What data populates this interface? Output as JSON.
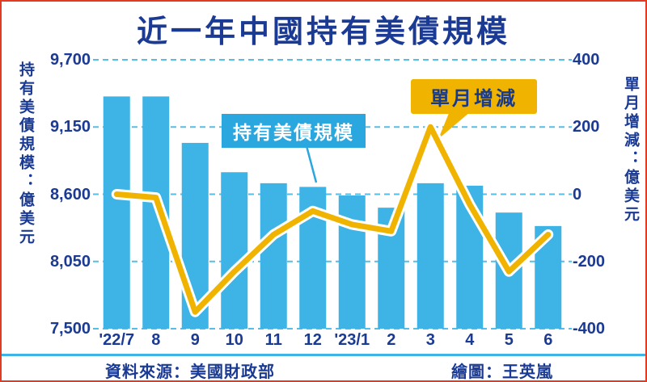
{
  "page": {
    "title": "近一年中國持有美債規模",
    "source": "資料來源：美國財政部",
    "credit": "繪圖：王英嵐"
  },
  "colors": {
    "title": "#1a3a94",
    "navy_text": "#1a3a94",
    "bar": "#3eb3e6",
    "line": "#f0b400",
    "line_casing": "#ffffff",
    "grid": "#4fc0ec",
    "frame_border": "#e23b22",
    "bar_callout_bg": "#29a7de",
    "bar_callout_text": "#ffffff",
    "line_callout_bg": "#f0b400",
    "line_callout_text": "#173a8c"
  },
  "chart_data": {
    "type": "bar",
    "subtype": "bar+line combo",
    "title": "近一年中國持有美債規模",
    "categories": [
      "'22/7",
      "8",
      "9",
      "10",
      "11",
      "12",
      "'23/1",
      "2",
      "3",
      "4",
      "5",
      "6"
    ],
    "series": [
      {
        "name": "持有美債規模",
        "type": "bar",
        "axis": "left",
        "unit": "億美元",
        "color": "#3eb3e6",
        "values": [
          9400,
          9400,
          9020,
          8780,
          8690,
          8660,
          8590,
          8490,
          8690,
          8670,
          8450,
          8340
        ]
      },
      {
        "name": "單月增減",
        "type": "line",
        "axis": "right",
        "unit": "億美元",
        "color": "#f0b400",
        "values": [
          0,
          -10,
          -350,
          -230,
          -120,
          -50,
          -90,
          -110,
          200,
          -30,
          -230,
          -120
        ]
      }
    ],
    "left_axis": {
      "title": "持有美債規模：億美元",
      "min": 7500,
      "max": 9700,
      "ticks": [
        "9,700",
        "9,150",
        "8,600",
        "8,050",
        "7,500"
      ]
    },
    "right_axis": {
      "title": "單月增減：億美元",
      "min": -400,
      "max": 400,
      "ticks": [
        "400",
        "200",
        "0",
        "-200",
        "-400"
      ]
    },
    "grid": {
      "horizontal": true,
      "style": "dashed"
    },
    "legend_position": "none",
    "annotations": [
      {
        "text": "持有美債規模",
        "target": "bar-series"
      },
      {
        "text": "單月增減",
        "target": "line-series"
      }
    ],
    "footer": {
      "source": "資料來源：美國財政部",
      "credit": "繪圖：王英嵐"
    }
  }
}
